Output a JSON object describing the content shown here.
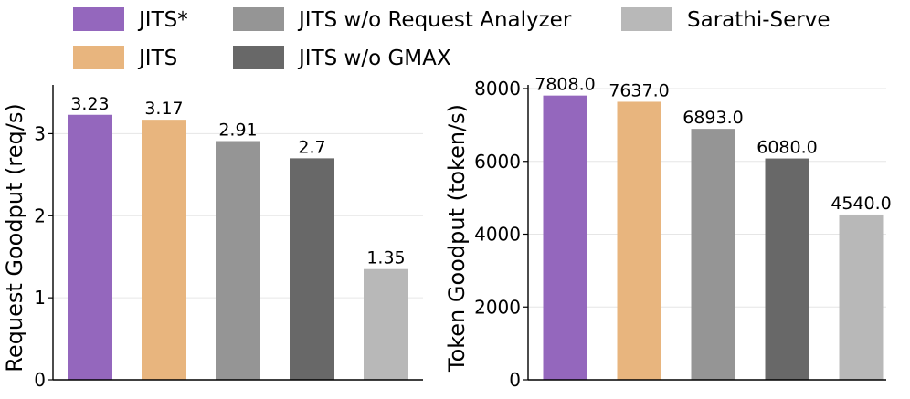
{
  "legend": {
    "placement": "top",
    "items": [
      {
        "label": "JITS*",
        "color": "#9467bd"
      },
      {
        "label": "JITS",
        "color": "#e8b57e"
      },
      {
        "label": "JITS w/o Request Analyzer",
        "color": "#959595"
      },
      {
        "label": "JITS w/o GMAX",
        "color": "#686868"
      },
      {
        "label": "Sarathi-Serve",
        "color": "#b8b8b8"
      }
    ]
  },
  "chart_data": [
    {
      "type": "bar",
      "title": "",
      "xlabel": "",
      "ylabel": "Request Goodput (req/s)",
      "categories": [
        "JITS*",
        "JITS",
        "JITS w/o Request Analyzer",
        "JITS w/o GMAX",
        "Sarathi-Serve"
      ],
      "values": [
        3.23,
        3.17,
        2.91,
        2.7,
        1.35
      ],
      "value_labels": [
        "3.23",
        "3.17",
        "2.91",
        "2.7",
        "1.35"
      ],
      "colors": [
        "#9467bd",
        "#e8b57e",
        "#959595",
        "#686868",
        "#b8b8b8"
      ],
      "ylim": [
        0,
        3.55
      ],
      "yticks": [
        0,
        1,
        2,
        3
      ],
      "ytick_labels": [
        "0",
        "1",
        "2",
        "3"
      ],
      "grid": "horizontal"
    },
    {
      "type": "bar",
      "title": "",
      "xlabel": "",
      "ylabel": "Token Goodput (token/s)",
      "categories": [
        "JITS*",
        "JITS",
        "JITS w/o Request Analyzer",
        "JITS w/o GMAX",
        "Sarathi-Serve"
      ],
      "values": [
        7808.0,
        7637.0,
        6893.0,
        6080.0,
        4540.0
      ],
      "value_labels": [
        "7808.0",
        "7637.0",
        "6893.0",
        "6080.0",
        "4540.0"
      ],
      "colors": [
        "#9467bd",
        "#e8b57e",
        "#959595",
        "#686868",
        "#b8b8b8"
      ],
      "ylim": [
        0,
        8000
      ],
      "yticks": [
        0,
        2000,
        4000,
        6000,
        8000
      ],
      "ytick_labels": [
        "0",
        "2000",
        "4000",
        "6000",
        "8000"
      ],
      "grid": "horizontal"
    }
  ]
}
